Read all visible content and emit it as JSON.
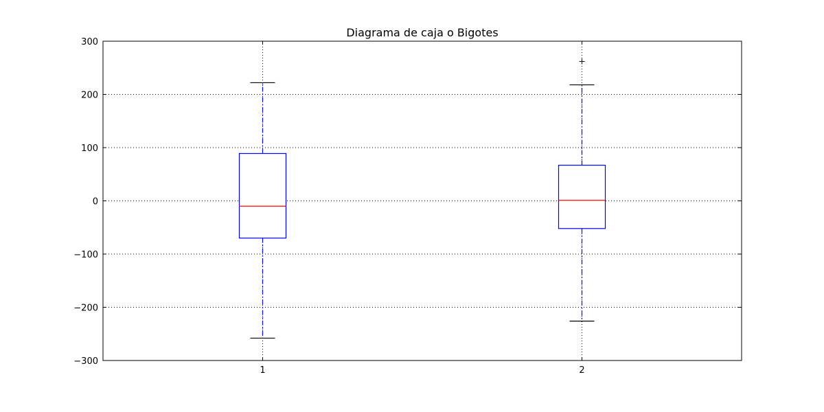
{
  "chart_data": {
    "type": "box",
    "title": "Diagrama de caja o Bigotes",
    "xlabel": "",
    "ylabel": "",
    "ylim": [
      -300,
      300
    ],
    "yticks": [
      300,
      200,
      100,
      0,
      -100,
      -200,
      -300
    ],
    "ytick_labels": [
      "300",
      "200",
      "100",
      "0",
      "−100",
      "−200",
      "−300"
    ],
    "grid": true,
    "categories": [
      "1",
      "2"
    ],
    "boxes": [
      {
        "label": "1",
        "whisker_low": -258,
        "q1": -70,
        "median": -10,
        "q3": 89,
        "whisker_high": 222,
        "outliers": []
      },
      {
        "label": "2",
        "whisker_low": -226,
        "q1": -52,
        "median": 1,
        "q3": 67,
        "whisker_high": 218,
        "outliers": [
          262
        ]
      }
    ],
    "colors": {
      "box": "#0000ff",
      "median": "#ff0000",
      "whisker": "#0000ff",
      "cap": "#000000",
      "outlier": "#000000",
      "grid": "#000000"
    }
  }
}
